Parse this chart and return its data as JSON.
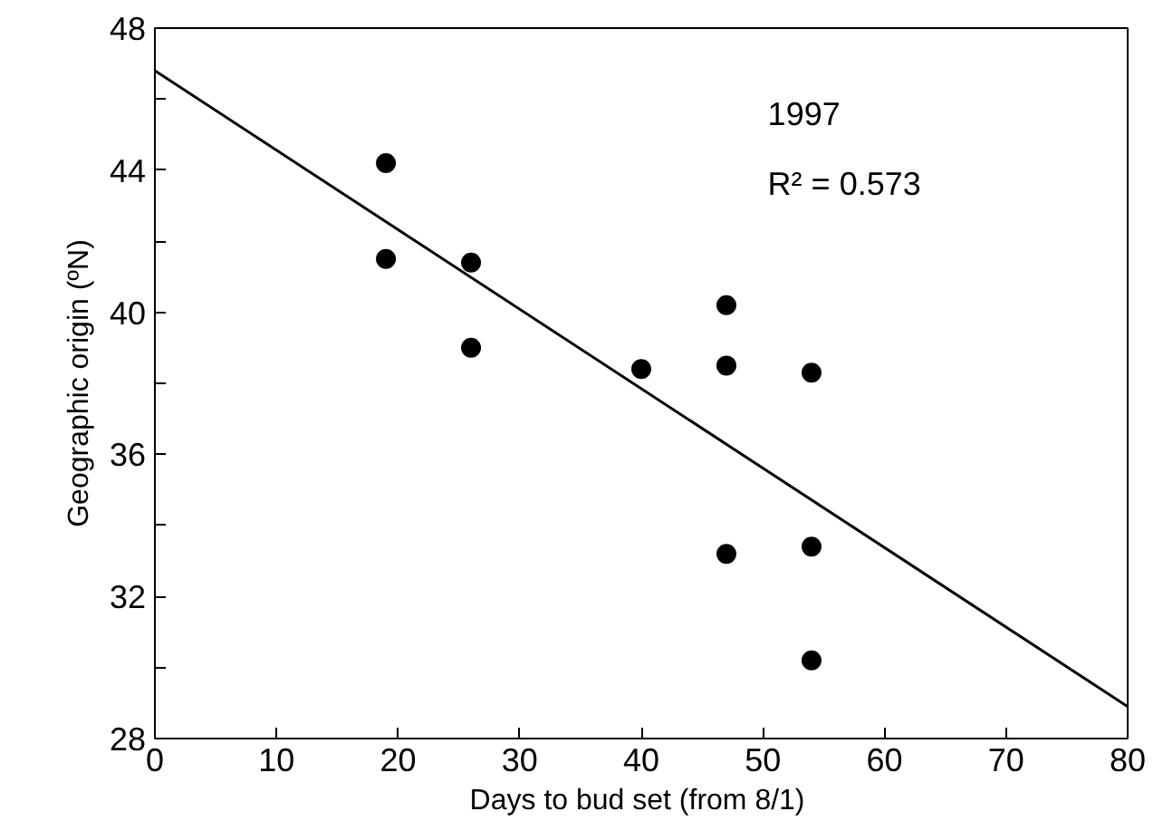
{
  "chart_data": {
    "type": "scatter",
    "xlabel": "Days to bud set  (from 8/1)",
    "ylabel": "Geographic origin (ºN)",
    "xlim": [
      0,
      80
    ],
    "ylim": [
      28,
      48
    ],
    "xticks": [
      0,
      10,
      20,
      30,
      40,
      50,
      60,
      70,
      80
    ],
    "yticks": [
      28,
      {
        "value": 30,
        "label": null
      },
      32,
      {
        "value": 34,
        "label": null
      },
      36,
      {
        "value": 38,
        "label": null
      },
      40,
      {
        "value": 42,
        "label": null
      },
      44,
      {
        "value": 46,
        "label": null
      },
      48
    ],
    "grid": false,
    "marker": "circle",
    "annotations": [
      "1997",
      "R² = 0.573"
    ],
    "series": [
      {
        "color": "#000000",
        "x": [
          19,
          19,
          26,
          26,
          40,
          47,
          47,
          54,
          47,
          54,
          54
        ],
        "values": [
          44.2,
          41.5,
          41.4,
          39.0,
          38.4,
          40.2,
          38.5,
          38.3,
          33.2,
          33.4,
          30.2
        ]
      },
      {
        "type": "line",
        "color": "#000000",
        "line_style": "solid",
        "marker": "none",
        "x": [
          0,
          80
        ],
        "values": [
          46.8,
          28.9
        ]
      }
    ]
  }
}
